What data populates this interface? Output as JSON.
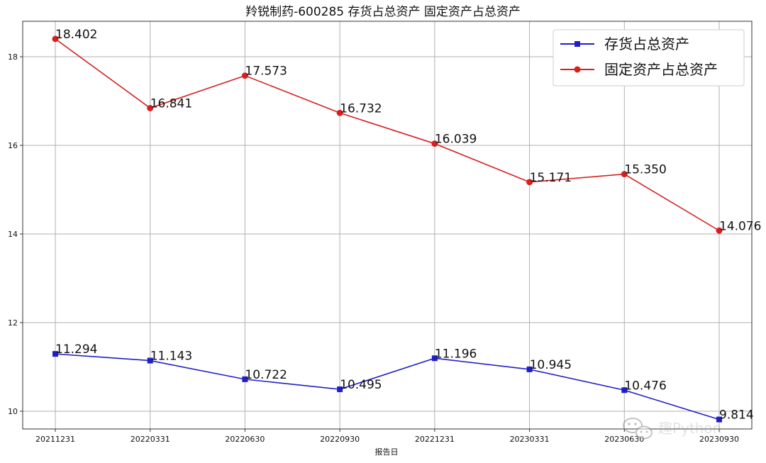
{
  "chart_data": {
    "type": "line",
    "title": "羚锐制药-600285 存货占总资产 固定资产占总资产",
    "xlabel": "报告日",
    "ylabel": "",
    "categories": [
      "20211231",
      "20220331",
      "20220630",
      "20220930",
      "20221231",
      "20230331",
      "20230630",
      "20230930"
    ],
    "ylim": [
      9.6,
      18.8
    ],
    "yticks": [
      10,
      12,
      14,
      16,
      18
    ],
    "grid": true,
    "legend_position": "top-right",
    "series": [
      {
        "name": "存货占总资产",
        "color": "#1f1fc8",
        "marker": "square",
        "values": [
          11.294,
          11.143,
          10.722,
          10.495,
          11.196,
          10.945,
          10.476,
          9.814
        ],
        "labels": [
          "11.294",
          "11.143",
          "10.722",
          "10.495",
          "11.196",
          "10.945",
          "10.476",
          "9.814"
        ]
      },
      {
        "name": "固定资产占总资产",
        "color": "#d62020",
        "marker": "circle",
        "values": [
          18.402,
          16.841,
          17.573,
          16.732,
          16.039,
          15.171,
          15.35,
          14.076
        ],
        "labels": [
          "18.402",
          "16.841",
          "17.573",
          "16.732",
          "16.039",
          "15.171",
          "15.350",
          "14.076"
        ]
      }
    ]
  },
  "watermark": {
    "text": "趣Python",
    "icon": "wechat-icon"
  }
}
